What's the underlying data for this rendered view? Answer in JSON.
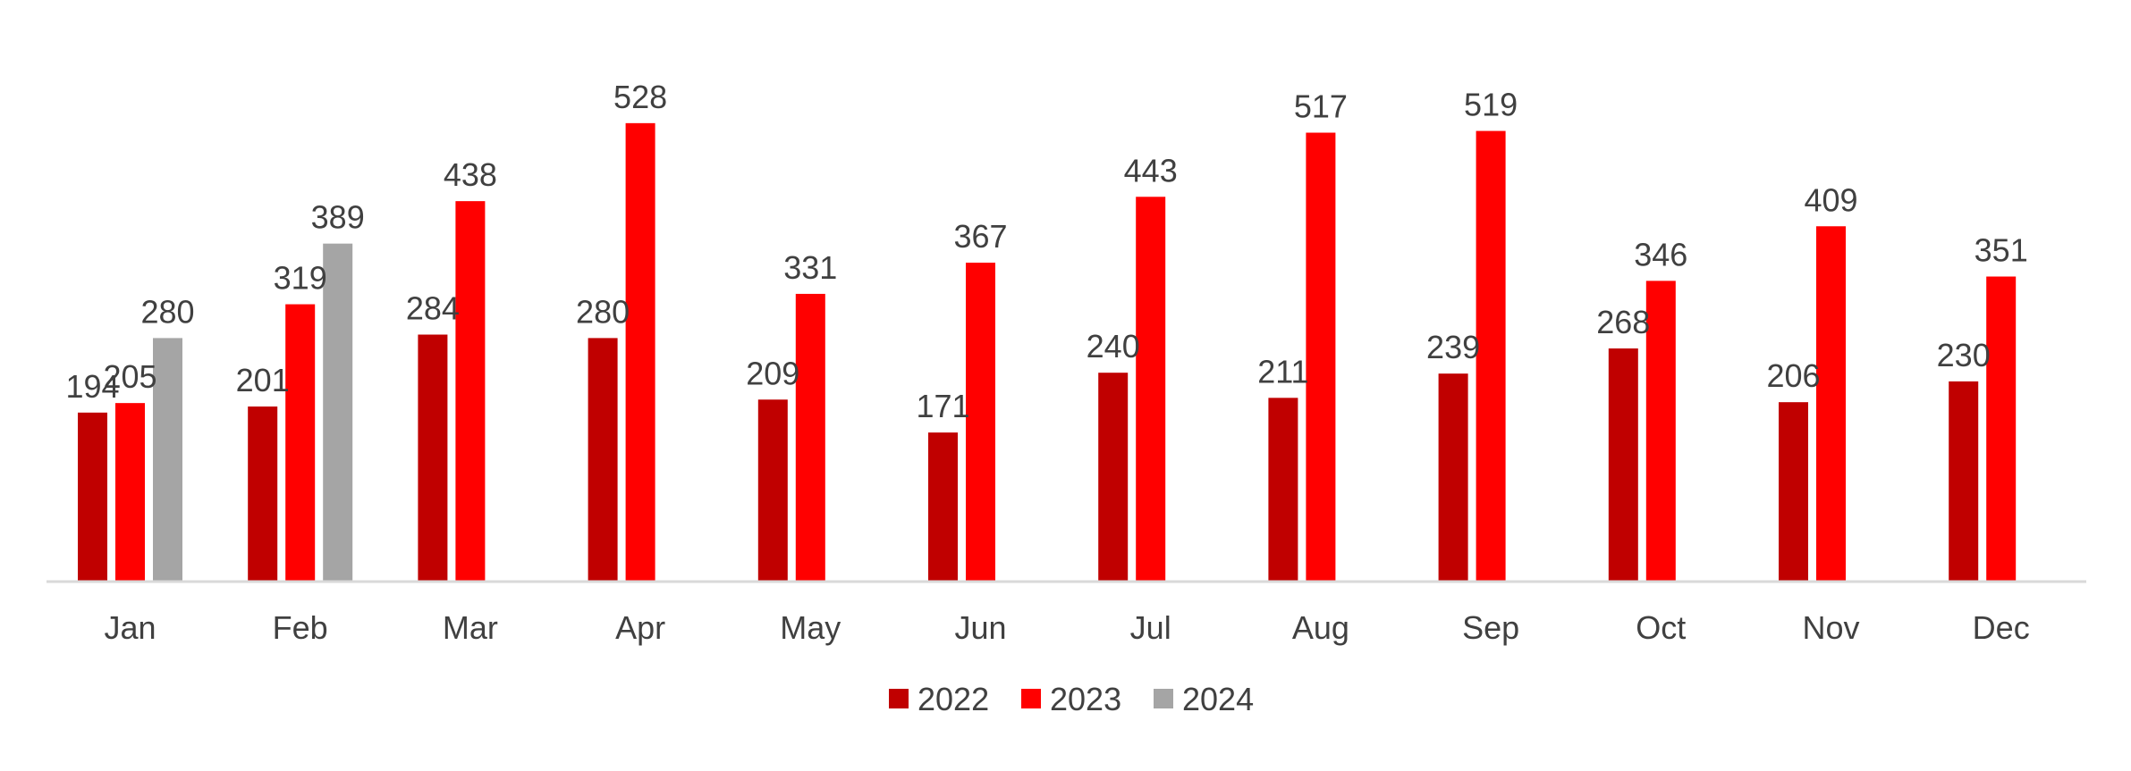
{
  "chart_data": {
    "type": "bar",
    "categories": [
      "Jan",
      "Feb",
      "Mar",
      "Apr",
      "May",
      "Jun",
      "Jul",
      "Aug",
      "Sep",
      "Oct",
      "Nov",
      "Dec"
    ],
    "series": [
      {
        "name": "2022",
        "color": "#C00000",
        "values": [
          194,
          201,
          284,
          280,
          209,
          171,
          240,
          211,
          239,
          268,
          206,
          230
        ]
      },
      {
        "name": "2023",
        "color": "#FF0000",
        "values": [
          205,
          319,
          438,
          528,
          331,
          367,
          443,
          517,
          519,
          346,
          409,
          351
        ]
      },
      {
        "name": "2024",
        "color": "#A5A5A5",
        "values": [
          280,
          389,
          null,
          null,
          null,
          null,
          null,
          null,
          null,
          null,
          null,
          null
        ]
      }
    ],
    "ylim": [
      0,
      560
    ],
    "grid": false,
    "legend_position": "bottom",
    "data_labels": true,
    "axis_color": "#D9D9D9",
    "text_color": "#404040"
  }
}
